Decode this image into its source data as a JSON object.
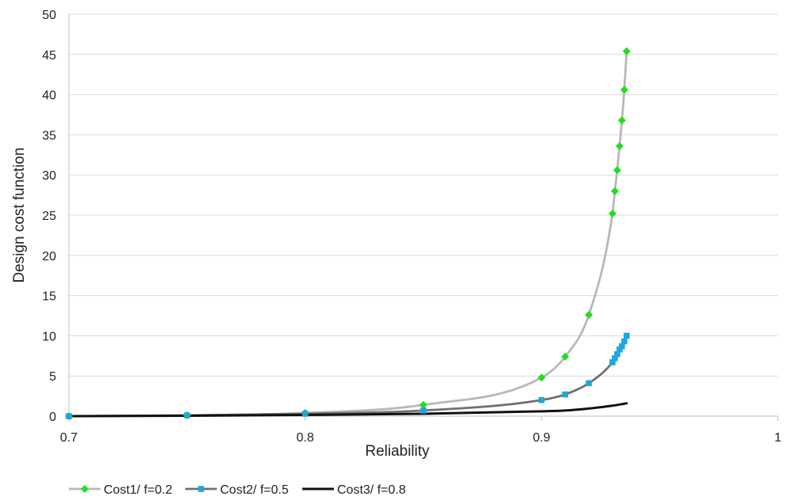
{
  "chart_data": {
    "type": "scatter",
    "xlabel": "Reliability",
    "ylabel": "Design cost function",
    "xlim": [
      0.7,
      1.0
    ],
    "ylim": [
      0,
      50
    ],
    "xticks": [
      "0.7",
      "0.8",
      "0.9",
      "1"
    ],
    "yticks": [
      "0",
      "5",
      "10",
      "15",
      "20",
      "25",
      "30",
      "35",
      "40",
      "45",
      "50"
    ],
    "grid": "horizontal",
    "legend_position": "bottom",
    "series": [
      {
        "name": "Cost1/ f=0.2",
        "line_color": "#b8b8b8",
        "marker_color": "#22dd22",
        "marker": "diamond",
        "points": [
          [
            0.7,
            0.0
          ],
          [
            0.75,
            0.1
          ],
          [
            0.8,
            0.4
          ],
          [
            0.85,
            1.4
          ],
          [
            0.9,
            4.8
          ],
          [
            0.91,
            7.4
          ],
          [
            0.92,
            12.6
          ],
          [
            0.93,
            25.2
          ],
          [
            0.931,
            28.0
          ],
          [
            0.932,
            30.6
          ],
          [
            0.933,
            33.6
          ],
          [
            0.934,
            36.8
          ],
          [
            0.935,
            40.6
          ],
          [
            0.936,
            45.4
          ]
        ]
      },
      {
        "name": "Cost2/ f=0.5",
        "line_color": "#707070",
        "marker_color": "#1ea6e0",
        "marker": "square",
        "points": [
          [
            0.7,
            0.0
          ],
          [
            0.75,
            0.1
          ],
          [
            0.8,
            0.3
          ],
          [
            0.85,
            0.7
          ],
          [
            0.9,
            2.0
          ],
          [
            0.91,
            2.7
          ],
          [
            0.92,
            4.1
          ],
          [
            0.93,
            6.7
          ],
          [
            0.931,
            7.2
          ],
          [
            0.932,
            7.7
          ],
          [
            0.933,
            8.3
          ],
          [
            0.934,
            8.7
          ],
          [
            0.935,
            9.3
          ],
          [
            0.936,
            10.0
          ]
        ]
      },
      {
        "name": "Cost3/ f=0.8",
        "line_color": "#111111",
        "marker_color": "#111111",
        "marker": "none",
        "points": [
          [
            0.7,
            0.0
          ],
          [
            0.75,
            0.05
          ],
          [
            0.8,
            0.15
          ],
          [
            0.85,
            0.3
          ],
          [
            0.9,
            0.6
          ],
          [
            0.91,
            0.7
          ],
          [
            0.92,
            0.95
          ],
          [
            0.93,
            1.3
          ],
          [
            0.936,
            1.6
          ]
        ]
      }
    ]
  }
}
